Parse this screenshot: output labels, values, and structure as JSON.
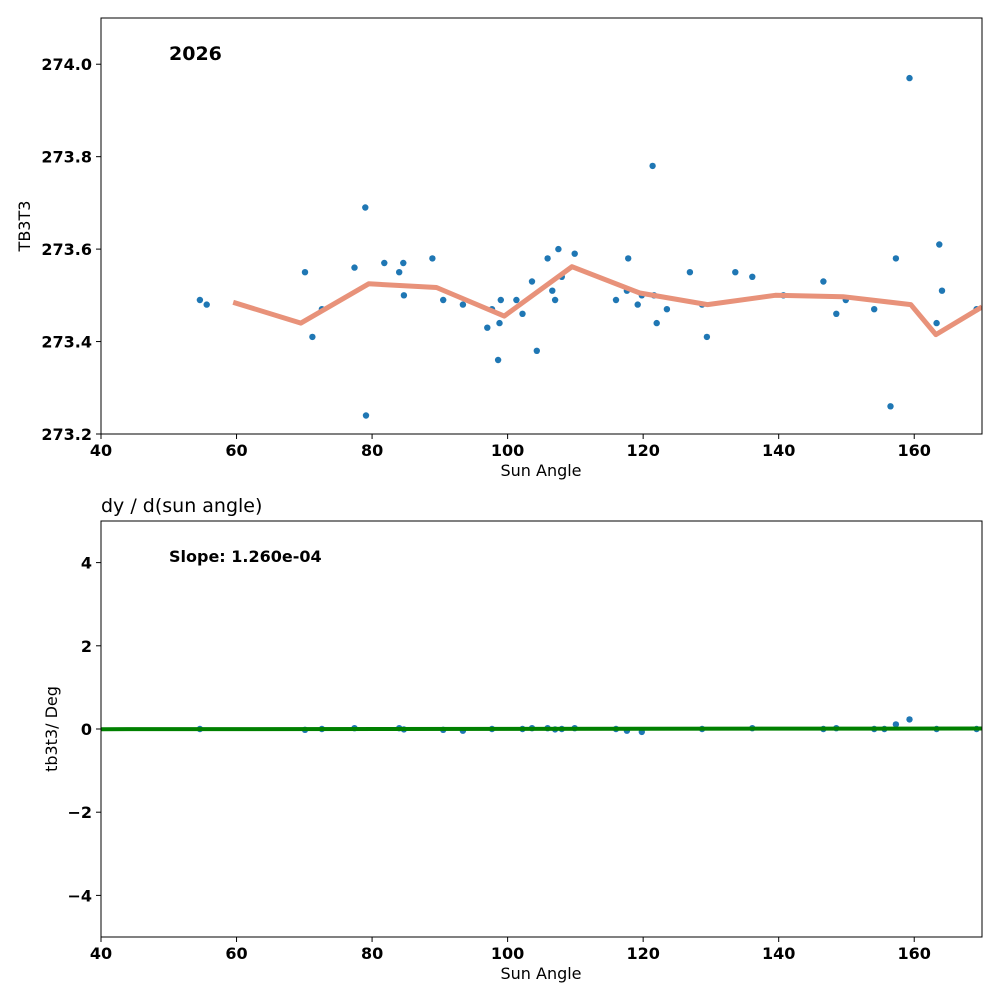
{
  "colors": {
    "points": "#1f77b4",
    "trend": "#e8927a",
    "fit": "#008000",
    "axes": "#000000"
  },
  "chart_data": [
    {
      "type": "scatter",
      "annotation": "2026",
      "title": "",
      "xlabel": "Sun Angle",
      "ylabel": "TB3T3",
      "xlim": [
        40,
        170
      ],
      "ylim": [
        273.2,
        274.1
      ],
      "xticks": [
        40,
        60,
        80,
        100,
        120,
        140,
        160
      ],
      "yticks": [
        273.2,
        273.4,
        273.6,
        273.8,
        274.0
      ],
      "ytick_labels": [
        "273.2",
        "273.4",
        "273.6",
        "273.8",
        "274.0"
      ],
      "series": [
        {
          "name": "points",
          "kind": "scatter",
          "x": [
            54.6,
            55.6,
            70.1,
            71.2,
            72.6,
            77.4,
            79.0,
            79.1,
            81.8,
            84.0,
            84.6,
            84.7,
            88.9,
            90.5,
            93.4,
            97.0,
            97.7,
            98.6,
            98.8,
            99.0,
            101.3,
            102.2,
            103.6,
            104.3,
            105.9,
            106.6,
            107.0,
            107.5,
            108.0,
            109.9,
            116.0,
            117.6,
            117.8,
            119.2,
            119.8,
            121.4,
            121.6,
            122.0,
            123.5,
            126.9,
            128.7,
            129.4,
            133.6,
            136.1,
            140.7,
            146.6,
            148.5,
            149.9,
            154.1,
            156.5,
            157.3,
            159.3,
            163.3,
            163.7,
            164.1,
            169.2
          ],
          "y": [
            273.49,
            273.48,
            273.55,
            273.41,
            273.47,
            273.56,
            273.69,
            273.24,
            273.57,
            273.55,
            273.57,
            273.5,
            273.58,
            273.49,
            273.48,
            273.43,
            273.47,
            273.36,
            273.44,
            273.49,
            273.49,
            273.46,
            273.53,
            273.38,
            273.58,
            273.51,
            273.49,
            273.6,
            273.54,
            273.59,
            273.49,
            273.51,
            273.58,
            273.48,
            273.5,
            273.78,
            273.5,
            273.44,
            273.47,
            273.55,
            273.48,
            273.41,
            273.55,
            273.54,
            273.5,
            273.53,
            273.46,
            273.49,
            273.47,
            273.26,
            273.58,
            273.97,
            273.44,
            273.61,
            273.51,
            273.47
          ]
        },
        {
          "name": "binned mean",
          "kind": "line",
          "x": [
            59.5,
            69.5,
            79.5,
            89.5,
            99.5,
            109.5,
            119.5,
            129.5,
            139.5,
            149.5,
            159.5,
            163.2,
            170.0
          ],
          "y": [
            273.485,
            273.44,
            273.525,
            273.517,
            273.455,
            273.562,
            273.505,
            273.48,
            273.5,
            273.497,
            273.48,
            273.415,
            273.475
          ]
        }
      ]
    },
    {
      "type": "scatter",
      "title": "dy / d(sun angle)",
      "annotation": "Slope: 1.260e-04",
      "xlabel": "Sun Angle",
      "ylabel": "tb3t3/ Deg",
      "xlim": [
        40,
        170
      ],
      "ylim": [
        -5,
        5
      ],
      "xticks": [
        40,
        60,
        80,
        100,
        120,
        140,
        160
      ],
      "yticks": [
        -4,
        -2,
        0,
        2,
        4
      ],
      "ytick_labels": [
        "−4",
        "−2",
        "0",
        "2",
        "4"
      ],
      "series": [
        {
          "name": "derivative",
          "kind": "scatter",
          "x": [
            54.6,
            70.1,
            72.6,
            77.4,
            84.0,
            84.7,
            90.5,
            93.4,
            97.7,
            102.2,
            103.6,
            105.9,
            107.0,
            108.0,
            109.9,
            116.0,
            117.6,
            119.8,
            128.7,
            136.1,
            146.6,
            148.5,
            154.1,
            155.6,
            157.3,
            159.3,
            163.3,
            169.2
          ],
          "y": [
            0.0,
            -0.02,
            0.0,
            0.02,
            0.02,
            -0.01,
            -0.02,
            -0.04,
            0.0,
            0.0,
            0.02,
            0.02,
            -0.01,
            0.0,
            0.02,
            0.0,
            -0.04,
            -0.07,
            0.0,
            0.02,
            0.0,
            0.02,
            0.0,
            0.0,
            0.11,
            0.23,
            0.0,
            0.0
          ]
        },
        {
          "name": "linear fit",
          "kind": "line",
          "x": [
            40,
            170
          ],
          "y": [
            -0.005,
            0.011
          ]
        }
      ]
    }
  ]
}
